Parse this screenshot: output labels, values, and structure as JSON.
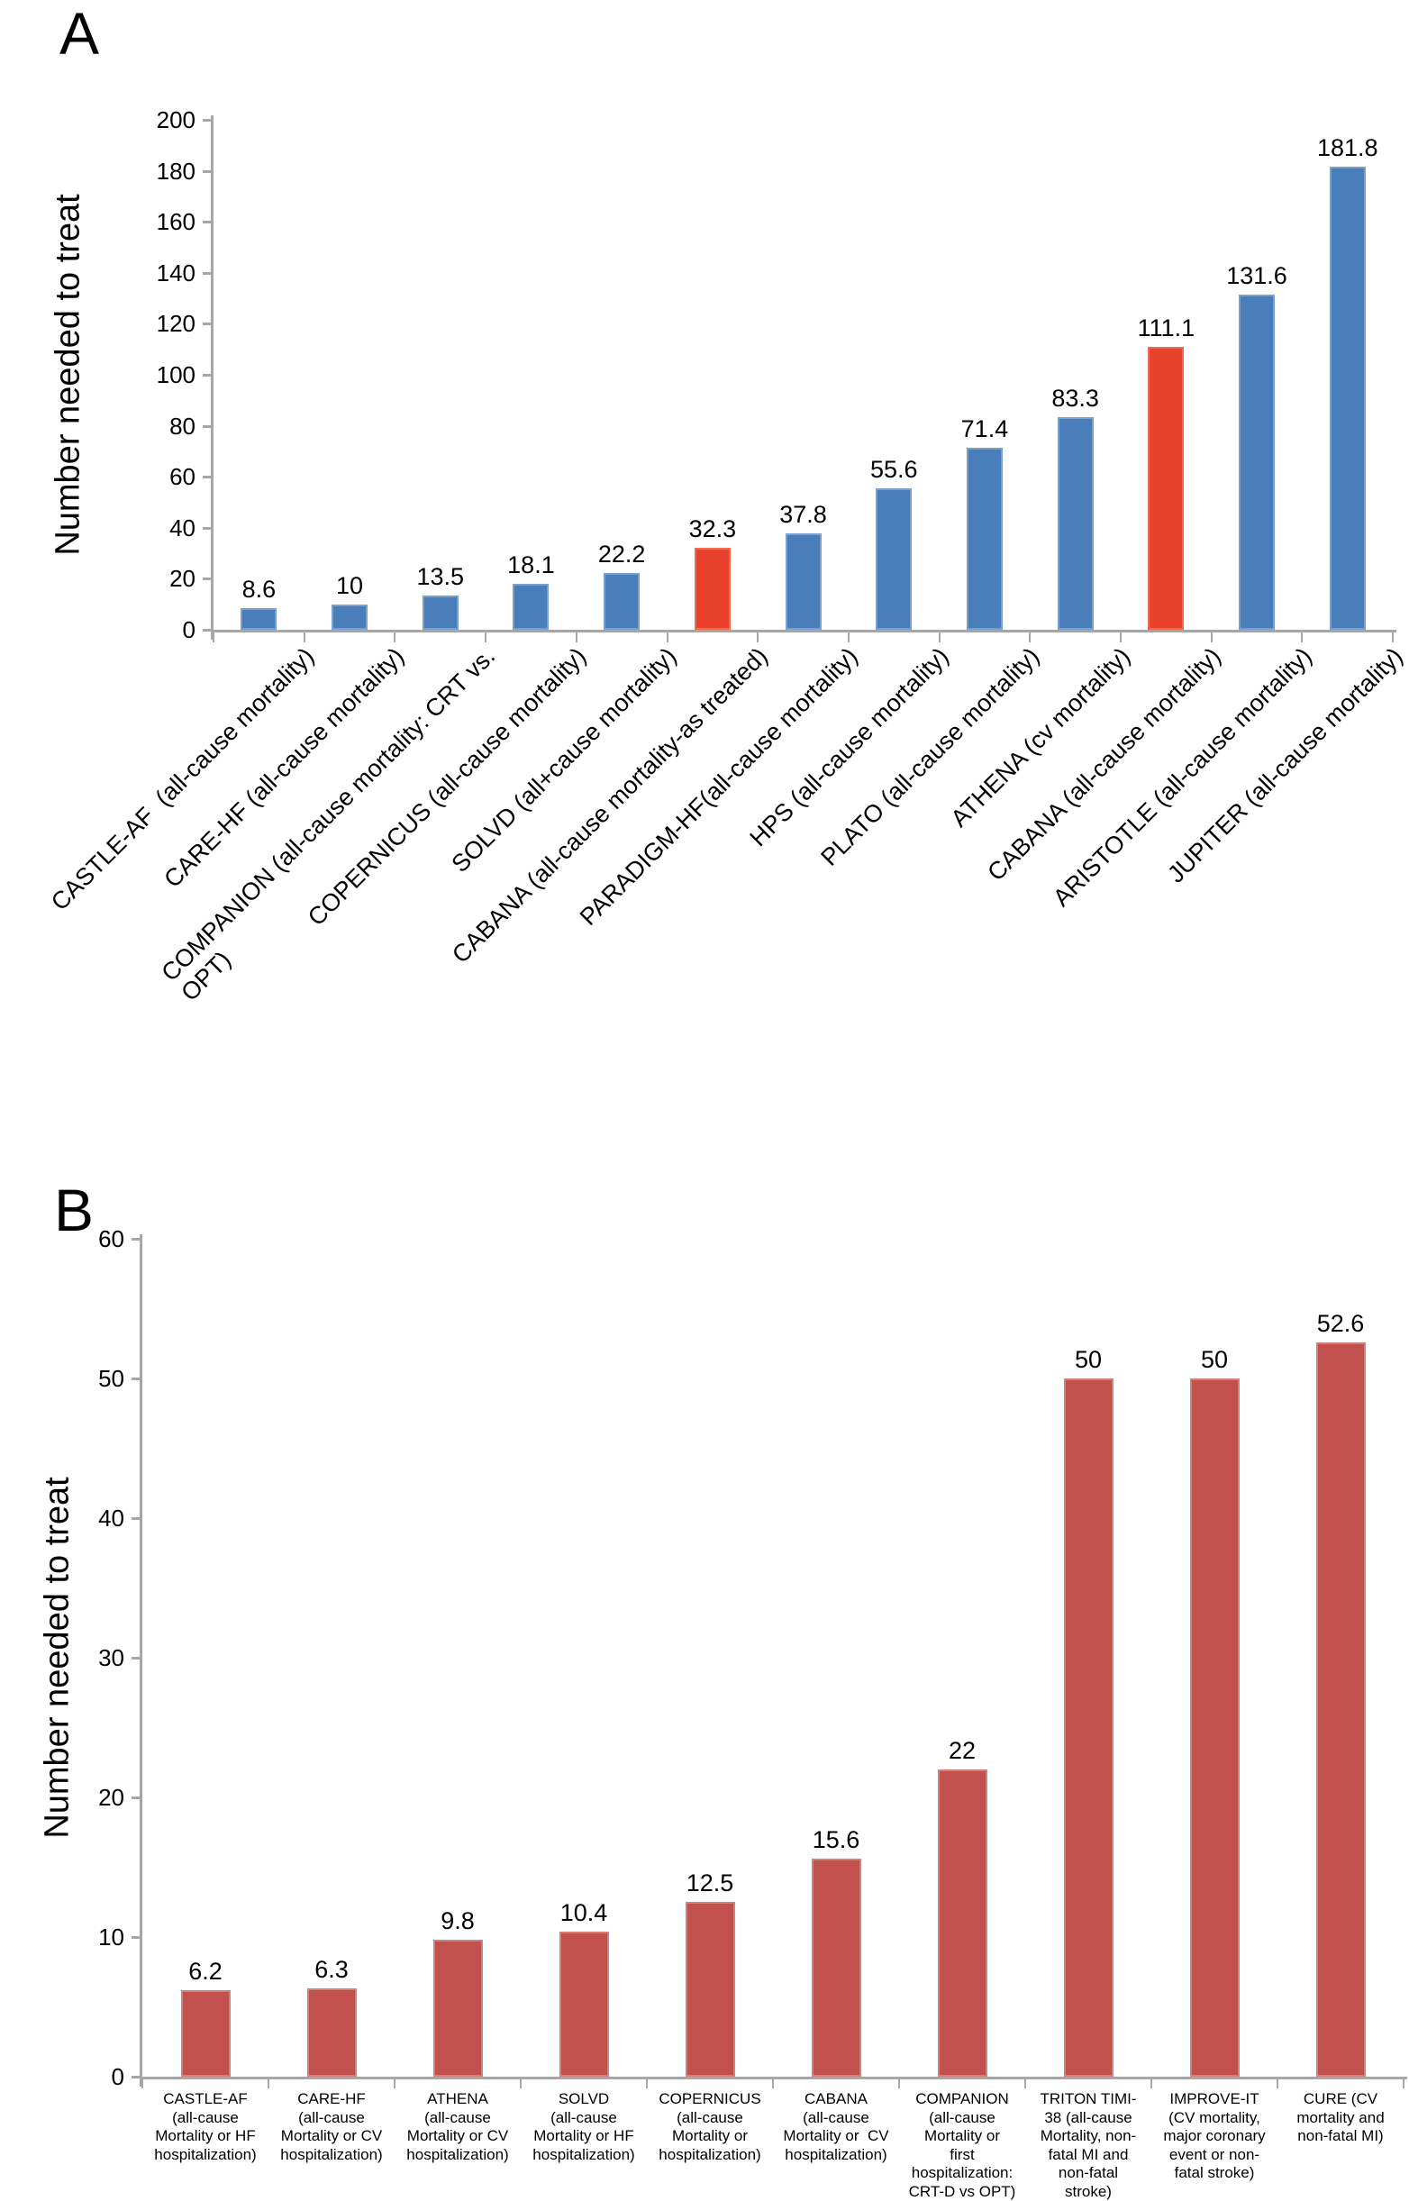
{
  "figure": {
    "panels": [
      {
        "label": "A",
        "y_axis_title": "Number needed to treat"
      },
      {
        "label": "B",
        "y_axis_title": "Number needed to treat"
      }
    ]
  },
  "colors": {
    "bar_blue": "#4a7ebb",
    "bar_blue_edge": "#7aa0cc",
    "bar_red": "#e8412c",
    "bar_red_edge": "#ee6a53",
    "bar_maroon": "#c2504c",
    "bar_maroon_edge": "#d57f7b",
    "axis_gray": "#a6a6a6",
    "text_black": "#000000"
  },
  "chart_data": [
    {
      "type": "bar",
      "panel": "A",
      "title": "",
      "xlabel": "",
      "ylabel": "Number needed to treat",
      "ylim": [
        0,
        200
      ],
      "yticks": [
        0,
        20,
        40,
        60,
        80,
        100,
        120,
        140,
        160,
        180,
        200
      ],
      "grid": false,
      "legend": null,
      "categories": [
        "CASTLE-AF  (all-cause mortality)",
        "CARE-HF (all-cause mortality)",
        "COMPANION (all-cause mortality: CRT vs.\nOPT)",
        "COPERNICUS (all-cause mortality)",
        "SOLVD (all+cause mortality)",
        "CABANA (all-cause mortality-as treated)",
        "PARADIGM-HF(all-cause mortality)",
        "HPS (all-cause mortality)",
        "PLATO (all-cause mortality)",
        "ATHENA (cv mortality)",
        "CABANA (all-cause mortality)",
        "ARISTOTLE (all-cause mortality)",
        "JUPITER (all-cause mortality)"
      ],
      "values": [
        8.6,
        10,
        13.5,
        18.1,
        22.2,
        32.3,
        37.8,
        55.6,
        71.4,
        83.3,
        111.1,
        131.6,
        181.8
      ],
      "value_labels": [
        "8.6",
        "10",
        "13.5",
        "18.1",
        "22.2",
        "32.3",
        "37.8",
        "55.6",
        "71.4",
        "83.3",
        "111.1",
        "131.6",
        "181.8"
      ],
      "bar_color_keys": [
        "bar_blue",
        "bar_blue",
        "bar_blue",
        "bar_blue",
        "bar_blue",
        "bar_red",
        "bar_blue",
        "bar_blue",
        "bar_blue",
        "bar_blue",
        "bar_red",
        "bar_blue",
        "bar_blue"
      ]
    },
    {
      "type": "bar",
      "panel": "B",
      "title": "",
      "xlabel": "",
      "ylabel": "Number needed to treat",
      "ylim": [
        0,
        60
      ],
      "yticks": [
        0,
        10,
        20,
        30,
        40,
        50,
        60
      ],
      "grid": false,
      "legend": null,
      "categories": [
        "CASTLE-AF\n(all-cause\nMortality or HF\nhospitalization)",
        "CARE-HF\n(all-cause\nMortality or CV\nhospitalization)",
        "ATHENA\n(all-cause\nMortality or CV\nhospitalization)",
        "SOLVD\n(all-cause\nMortality or HF\nhospitalization)",
        "COPERNICUS\n(all-cause\nMortality or\nhospitalization)",
        "CABANA\n(all-cause\nMortality or  CV\nhospitalization)",
        "COMPANION\n(all-cause\nMortality or\nfirst\nhospitalization:\nCRT-D vs OPT)",
        "TRITON TIMI-\n38 (all-cause\nMortality, non-\nfatal MI and\nnon-fatal\nstroke)",
        "IMPROVE-IT\n(CV mortality,\nmajor coronary\nevent or non-\nfatal stroke)",
        "CURE (CV\nmortality and\nnon-fatal MI)"
      ],
      "values": [
        6.2,
        6.3,
        9.8,
        10.4,
        12.5,
        15.6,
        22,
        50,
        50,
        52.6
      ],
      "value_labels": [
        "6.2",
        "6.3",
        "9.8",
        "10.4",
        "12.5",
        "15.6",
        "22",
        "50",
        "50",
        "52.6"
      ],
      "bar_color_keys": [
        "bar_maroon",
        "bar_maroon",
        "bar_maroon",
        "bar_maroon",
        "bar_maroon",
        "bar_maroon",
        "bar_maroon",
        "bar_maroon",
        "bar_maroon",
        "bar_maroon"
      ]
    }
  ]
}
